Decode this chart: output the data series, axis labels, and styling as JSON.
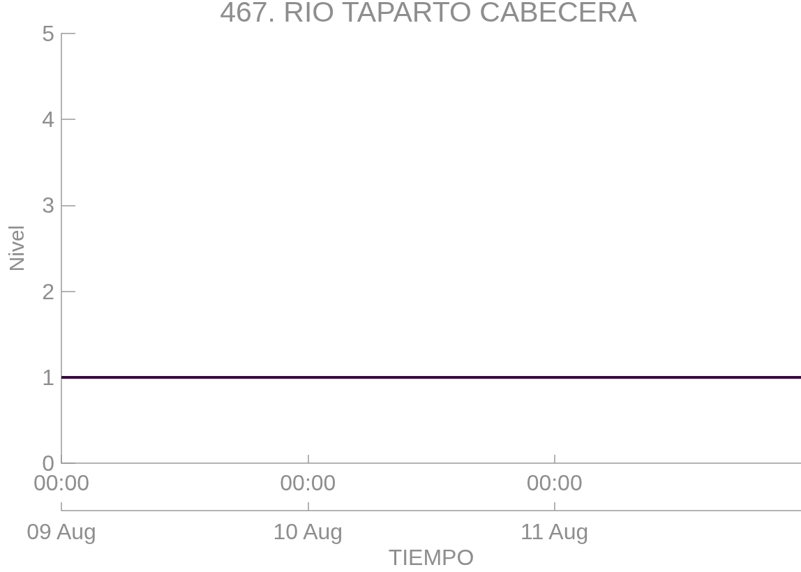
{
  "chart_data": {
    "type": "line",
    "title": "467. RIO TAPARTO CABECERA",
    "xlabel": "TIEMPO",
    "ylabel": "Nivel",
    "x": [
      "--08-09T00:00",
      "--08-10T00:00",
      "--08-11T00:00",
      "--08-12T00:00"
    ],
    "series": [
      {
        "color": "#3a0a40",
        "values": [
          1,
          1,
          1,
          1
        ]
      }
    ],
    "xlim": [
      "--08-09T00:00",
      "--08-12T00:00"
    ],
    "xticks": [
      {
        "value": "--08-09T00:00",
        "label": "00:00"
      },
      {
        "value": "--08-10T00:00",
        "label": "00:00"
      },
      {
        "value": "--08-11T00:00",
        "label": "00:00"
      }
    ],
    "x2lim": [
      "--08-09T00:00",
      "--08-12T00:00"
    ],
    "x2ticks": [
      {
        "value": "--08-09T00:00",
        "label": "09 Aug"
      },
      {
        "value": "--08-10T00:00",
        "label": "10 Aug"
      },
      {
        "value": "--08-11T00:00",
        "label": "11 Aug"
      }
    ],
    "ylim": [
      0,
      5
    ],
    "yticks": [
      0,
      1,
      2,
      3,
      4,
      5
    ],
    "marker": "none",
    "line_style": "solid"
  }
}
